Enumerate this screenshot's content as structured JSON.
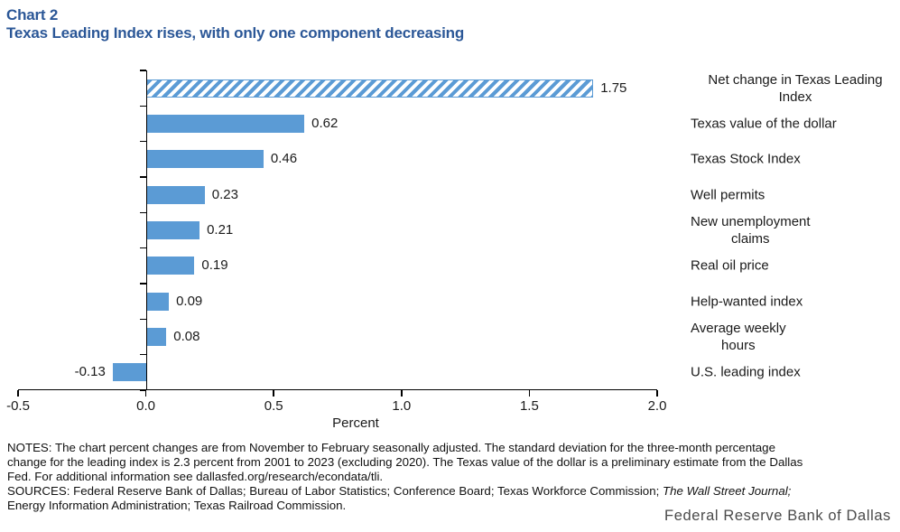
{
  "header": {
    "chart_number": "Chart 2",
    "title": "Texas Leading Index rises, with only one component decreasing"
  },
  "chart_data": {
    "type": "bar",
    "orientation": "horizontal",
    "xlabel": "Percent",
    "xlim": [
      -0.5,
      2.0
    ],
    "xticks": [
      -0.5,
      0.0,
      0.5,
      1.0,
      1.5,
      2.0
    ],
    "grid": false,
    "legend": null,
    "categories": [
      "Net change in Texas Leading Index",
      "Texas value of the dollar",
      "Texas Stock Index",
      "Well permits",
      "New unemployment\nclaims",
      "Real oil price",
      "Help-wanted index",
      "Average weekly\nhours",
      "U.S. leading index"
    ],
    "values": [
      1.75,
      0.62,
      0.46,
      0.23,
      0.21,
      0.19,
      0.09,
      0.08,
      -0.13
    ],
    "data_labels": [
      "1.75",
      "0.62",
      "0.46",
      "0.23",
      "0.21",
      "0.19",
      "0.09",
      "0.08",
      "-0.13"
    ],
    "bar_color": "#5B9BD5",
    "hatched_indices": [
      0
    ]
  },
  "notes": {
    "lines": [
      "NOTES: The chart percent changes are from November to February seasonally adjusted. The standard deviation for the three-month percentage",
      "change for the leading index is 2.3 percent from 2001 to 2023 (excluding 2020). The Texas value of the dollar is a preliminary estimate from the Dallas",
      "Fed. For additional information see dallasfed.org/research/econdata/tli."
    ],
    "sources_prefix": "SOURCES: Federal Reserve Bank of Dallas; Bureau of Labor Statistics; Conference Board; Texas Workforce Commission; ",
    "sources_italic": "The Wall Street Journal;",
    "sources_line2": "Energy Information Administration; Texas Railroad Commission."
  },
  "footer": {
    "brand": "Federal Reserve Bank of Dallas"
  },
  "colors": {
    "title_blue": "#2B5797",
    "bar_blue": "#5B9BD5",
    "axis_black": "#000000",
    "footer_gray": "#4a4a4a"
  }
}
